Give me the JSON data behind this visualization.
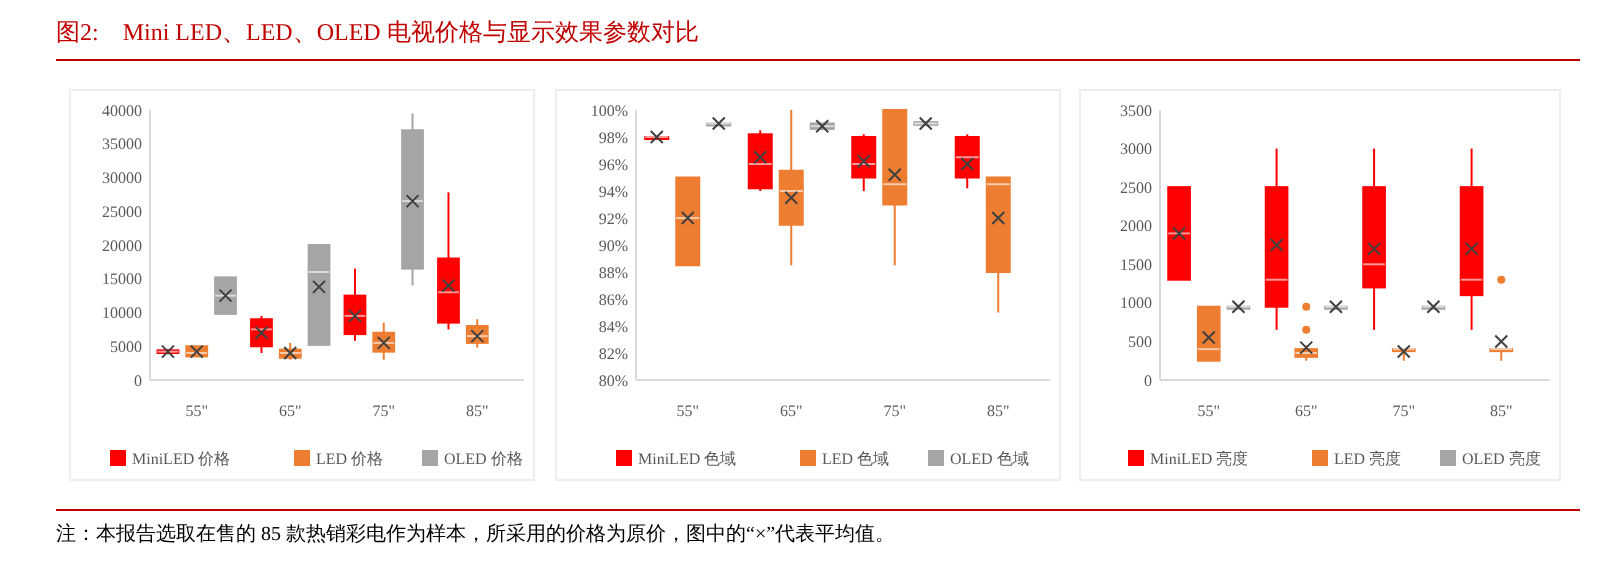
{
  "chart_data": [
    {
      "type": "box",
      "title": "图2:    Mini LED、LED、OLED 电视价格与显示效果参数对比",
      "annotations": [
        "注：本报告选取在售的 85 款热销彩电作为样本，所采用的价格为原价，图中的“×”代表平均值。"
      ],
      "categories": [
        "55\"",
        "65\"",
        "75\"",
        "85\""
      ],
      "ylim": [
        0,
        40000
      ],
      "yticks": [
        0,
        5000,
        10000,
        15000,
        20000,
        25000,
        30000,
        35000,
        40000
      ],
      "legend": "bottom",
      "series": [
        {
          "name": "MiniLED 价格",
          "color": "#ff0000",
          "boxes": [
            {
              "low": 3800,
              "q1": 4000,
              "median": 4200,
              "q3": 4400,
              "high": 4600,
              "mean": 4200
            },
            {
              "low": 4000,
              "q1": 5000,
              "median": 7500,
              "q3": 9000,
              "high": 9500,
              "mean": 7000
            },
            {
              "low": 5800,
              "q1": 6800,
              "median": 9500,
              "q3": 12500,
              "high": 16500,
              "mean": 9500
            },
            {
              "low": 7500,
              "q1": 8500,
              "median": 13000,
              "q3": 18000,
              "high": 27800,
              "mean": 14000
            }
          ]
        },
        {
          "name": "LED 价格",
          "color": "#ed7d31",
          "boxes": [
            {
              "low": 3500,
              "q1": 3500,
              "median": 4000,
              "q3": 5000,
              "high": 5000,
              "mean": 4200
            },
            {
              "low": 3000,
              "q1": 3300,
              "median": 4000,
              "q3": 4500,
              "high": 5500,
              "mean": 4000
            },
            {
              "low": 3000,
              "q1": 4200,
              "median": 5500,
              "q3": 7000,
              "high": 8500,
              "mean": 5500
            },
            {
              "low": 4800,
              "q1": 5500,
              "median": 6500,
              "q3": 8000,
              "high": 9000,
              "mean": 6500
            }
          ]
        },
        {
          "name": "OLED 价格",
          "color": "#a5a5a5",
          "boxes": [
            {
              "low": 9800,
              "q1": 9800,
              "median": 12500,
              "q3": 15200,
              "high": 15200,
              "mean": 12500
            },
            {
              "low": 5200,
              "q1": 5200,
              "median": 16000,
              "q3": 20000,
              "high": 20000,
              "mean": 13800
            },
            {
              "low": 14000,
              "q1": 16500,
              "median": 26500,
              "q3": 37000,
              "high": 39500,
              "mean": 26500
            },
            null
          ]
        }
      ]
    },
    {
      "type": "box",
      "categories": [
        "55\"",
        "65\"",
        "75\"",
        "85\""
      ],
      "ylim": [
        80,
        100
      ],
      "yticks": [
        {
          "value": 80,
          "label": "80%"
        },
        {
          "value": 82,
          "label": "82%"
        },
        {
          "value": 84,
          "label": "84%"
        },
        {
          "value": 86,
          "label": "86%"
        },
        {
          "value": 88,
          "label": "88%"
        },
        {
          "value": 90,
          "label": "90%"
        },
        {
          "value": 92,
          "label": "92%"
        },
        {
          "value": 94,
          "label": "94%"
        },
        {
          "value": 96,
          "label": "96%"
        },
        {
          "value": 98,
          "label": "98%"
        },
        {
          "value": 100,
          "label": "100%"
        }
      ],
      "legend": "bottom",
      "series": [
        {
          "name": "MiniLED 色域",
          "color": "#ff0000",
          "boxes": [
            {
              "low": 98,
              "q1": 98,
              "median": 98,
              "q3": 98,
              "high": 98,
              "mean": 98
            },
            {
              "low": 94,
              "q1": 94.2,
              "median": 96,
              "q3": 98.2,
              "high": 98.5,
              "mean": 96.5
            },
            {
              "low": 94,
              "q1": 95,
              "median": 96,
              "q3": 98,
              "high": 98.2,
              "mean": 96.2
            },
            {
              "low": 94.2,
              "q1": 95,
              "median": 96.5,
              "q3": 98,
              "high": 98.2,
              "mean": 96
            }
          ]
        },
        {
          "name": "LED 色域",
          "color": "#ed7d31",
          "boxes": [
            {
              "low": 88.5,
              "q1": 88.5,
              "median": 92,
              "q3": 95,
              "high": 95,
              "mean": 92
            },
            {
              "low": 88.5,
              "q1": 91.5,
              "median": 94,
              "q3": 95.5,
              "high": 100,
              "mean": 93.5
            },
            {
              "low": 88.5,
              "q1": 93,
              "median": 94.5,
              "q3": 100,
              "high": 100,
              "mean": 95.2
            },
            {
              "low": 85,
              "q1": 88,
              "median": 94.5,
              "q3": 95,
              "high": 95,
              "mean": 92
            }
          ]
        },
        {
          "name": "OLED 色域",
          "color": "#a5a5a5",
          "boxes": [
            {
              "low": 99,
              "q1": 99,
              "median": 99,
              "q3": 99,
              "high": 99,
              "mean": 99
            },
            {
              "low": 98.5,
              "q1": 98.6,
              "median": 98.8,
              "q3": 99,
              "high": 99,
              "mean": 98.8
            },
            {
              "low": 98.8,
              "q1": 98.9,
              "median": 99,
              "q3": 99.1,
              "high": 99.2,
              "mean": 99
            },
            null
          ]
        }
      ]
    },
    {
      "type": "box",
      "categories": [
        "55\"",
        "65\"",
        "75\"",
        "85\""
      ],
      "ylim": [
        0,
        3500
      ],
      "yticks": [
        0,
        500,
        1000,
        1500,
        2000,
        2500,
        3000,
        3500
      ],
      "legend": "bottom",
      "series": [
        {
          "name": "MiniLED 亮度",
          "color": "#ff0000",
          "boxes": [
            {
              "low": 1300,
              "q1": 1300,
              "median": 1900,
              "q3": 2500,
              "high": 2500,
              "mean": 1900
            },
            {
              "low": 650,
              "q1": 950,
              "median": 1300,
              "q3": 2500,
              "high": 3000,
              "mean": 1750
            },
            {
              "low": 650,
              "q1": 1200,
              "median": 1500,
              "q3": 2500,
              "high": 3000,
              "mean": 1700
            },
            {
              "low": 650,
              "q1": 1100,
              "median": 1300,
              "q3": 2500,
              "high": 3000,
              "mean": 1700
            }
          ]
        },
        {
          "name": "LED 亮度",
          "color": "#ed7d31",
          "boxes": [
            {
              "low": 250,
              "q1": 250,
              "median": 400,
              "q3": 950,
              "high": 950,
              "mean": 550
            },
            {
              "low": 250,
              "q1": 300,
              "median": 350,
              "q3": 400,
              "high": 450,
              "mean": 420,
              "outliers": [
                650,
                950
              ]
            },
            {
              "low": 250,
              "q1": 380,
              "median": 400,
              "q3": 400,
              "high": 400,
              "mean": 370
            },
            {
              "low": 250,
              "q1": 400,
              "median": 400,
              "q3": 400,
              "high": 400,
              "mean": 500,
              "outliers": [
                1300
              ]
            }
          ]
        },
        {
          "name": "OLED 亮度",
          "color": "#a5a5a5",
          "boxes": [
            {
              "low": 950,
              "q1": 950,
              "median": 950,
              "q3": 950,
              "high": 950,
              "mean": 950
            },
            {
              "low": 950,
              "q1": 950,
              "median": 950,
              "q3": 950,
              "high": 950,
              "mean": 950
            },
            {
              "low": 950,
              "q1": 950,
              "median": 950,
              "q3": 950,
              "high": 950,
              "mean": 950
            },
            null
          ]
        }
      ]
    }
  ]
}
